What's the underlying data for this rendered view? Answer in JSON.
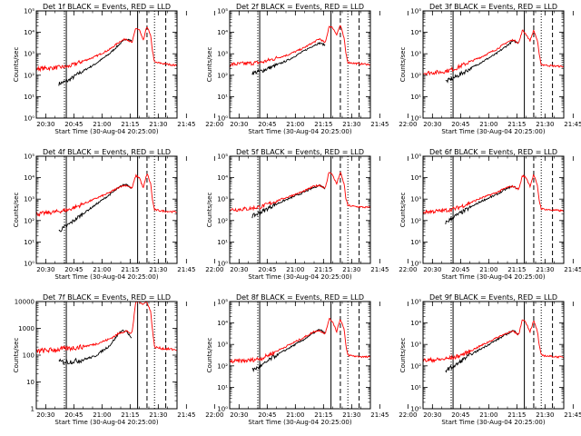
{
  "page_title": "",
  "chart_data": [
    {
      "type": "line",
      "title": "Det 1f BLACK = Events, RED = LLD",
      "xlabel": "Start Time (30-Aug-04 20:25:00)",
      "ylabel": "Counts/sec",
      "yscale": "log",
      "ylim": [
        1,
        100000
      ],
      "ytick_labels": [
        "10⁰",
        "10¹",
        "10²",
        "10³",
        "10⁴",
        "10⁵"
      ],
      "xlim_minutes": [
        25,
        100
      ],
      "xtick_labels": [
        "20:30",
        "20:45",
        "21:00",
        "21:15",
        "21:30",
        "21:45",
        "22:00"
      ],
      "grid": false,
      "series": [
        {
          "name": "Events",
          "color": "#000000",
          "t_minutes": [
            37,
            42,
            48,
            56,
            64,
            70,
            73,
            76
          ],
          "log10_rate": [
            1.6,
            1.75,
            2.1,
            2.5,
            3.0,
            3.5,
            3.7,
            3.6
          ]
        },
        {
          "name": "LLD",
          "color": "#ff0000",
          "t_minutes": [
            25,
            35,
            42,
            48,
            56,
            64,
            70,
            73,
            76,
            78,
            80,
            82,
            84,
            86,
            87,
            88,
            92,
            100
          ],
          "log10_rate": [
            2.3,
            2.35,
            2.4,
            2.6,
            2.85,
            3.2,
            3.6,
            3.7,
            3.5,
            4.2,
            4.1,
            3.6,
            4.3,
            3.8,
            3.1,
            2.6,
            2.55,
            2.45
          ]
        }
      ],
      "markers": {
        "solid": [
          41,
          79
        ],
        "dotted": [
          40,
          88
        ],
        "dashed": [
          84,
          94
        ]
      }
    },
    {
      "type": "line",
      "title": "Det 2f BLACK = Events, RED = LLD",
      "xlabel": "Start Time (30-Aug-04 20:25:00)",
      "ylabel": "Counts/sec",
      "yscale": "log",
      "ylim": [
        1,
        100000
      ],
      "ytick_labels": [
        "10⁰",
        "10¹",
        "10²",
        "10³",
        "10⁴",
        "10⁵"
      ],
      "xlim_minutes": [
        25,
        100
      ],
      "xtick_labels": [
        "20:30",
        "20:45",
        "21:00",
        "21:15",
        "21:30",
        "21:45",
        "22:00"
      ],
      "grid": false,
      "series": [
        {
          "name": "Events",
          "color": "#000000",
          "t_minutes": [
            37,
            42,
            48,
            56,
            64,
            70,
            73,
            76
          ],
          "log10_rate": [
            2.1,
            2.2,
            2.4,
            2.7,
            3.1,
            3.4,
            3.5,
            3.4
          ]
        },
        {
          "name": "LLD",
          "color": "#ff0000",
          "t_minutes": [
            25,
            35,
            42,
            48,
            56,
            64,
            70,
            73,
            76,
            78,
            80,
            82,
            84,
            86,
            87,
            88,
            92,
            100
          ],
          "log10_rate": [
            2.5,
            2.55,
            2.6,
            2.75,
            2.95,
            3.25,
            3.55,
            3.7,
            3.5,
            4.3,
            4.2,
            3.9,
            4.35,
            3.7,
            3.0,
            2.6,
            2.55,
            2.5
          ]
        }
      ],
      "markers": {
        "solid": [
          41,
          79
        ],
        "dotted": [
          40,
          88
        ],
        "dashed": [
          84,
          94
        ]
      }
    },
    {
      "type": "line",
      "title": "Det 3f BLACK = Events, RED = LLD",
      "xlabel": "Start Time (30-Aug-04 20:25:00)",
      "ylabel": "Counts/sec",
      "yscale": "log",
      "ylim": [
        1,
        100000
      ],
      "ytick_labels": [
        "10⁰",
        "10¹",
        "10²",
        "10³",
        "10⁴",
        "10⁵"
      ],
      "xlim_minutes": [
        25,
        100
      ],
      "xtick_labels": [
        "20:30",
        "20:45",
        "21:00",
        "21:15",
        "21:30",
        "21:45",
        "22:00"
      ],
      "grid": false,
      "series": [
        {
          "name": "Events",
          "color": "#000000",
          "t_minutes": [
            37,
            42,
            48,
            56,
            64,
            70,
            73,
            76
          ],
          "log10_rate": [
            1.7,
            1.9,
            2.2,
            2.6,
            3.0,
            3.4,
            3.6,
            3.5
          ]
        },
        {
          "name": "LLD",
          "color": "#ff0000",
          "t_minutes": [
            25,
            35,
            42,
            48,
            56,
            64,
            70,
            73,
            76,
            78,
            80,
            82,
            84,
            86,
            87,
            88,
            92,
            100
          ],
          "log10_rate": [
            2.1,
            2.15,
            2.3,
            2.55,
            2.85,
            3.2,
            3.55,
            3.65,
            3.5,
            4.1,
            3.9,
            3.6,
            4.1,
            3.6,
            2.9,
            2.5,
            2.45,
            2.4
          ]
        }
      ],
      "markers": {
        "solid": [
          41,
          79
        ],
        "dotted": [
          40,
          88
        ],
        "dashed": [
          84,
          94
        ]
      }
    },
    {
      "type": "line",
      "title": "Det 4f BLACK = Events, RED = LLD",
      "xlabel": "Start Time (30-Aug-04 20:25:00)",
      "ylabel": "Counts/sec",
      "yscale": "log",
      "ylim": [
        1,
        100000
      ],
      "ytick_labels": [
        "10⁰",
        "10¹",
        "10²",
        "10³",
        "10⁴",
        "10⁵"
      ],
      "xlim_minutes": [
        25,
        100
      ],
      "xtick_labels": [
        "20:30",
        "20:45",
        "21:00",
        "21:15",
        "21:30",
        "21:45",
        "22:00"
      ],
      "grid": false,
      "series": [
        {
          "name": "Events",
          "color": "#000000",
          "t_minutes": [
            37,
            42,
            48,
            56,
            64,
            70,
            73,
            76
          ],
          "log10_rate": [
            1.5,
            1.8,
            2.2,
            2.7,
            3.2,
            3.6,
            3.7,
            3.5
          ]
        },
        {
          "name": "LLD",
          "color": "#ff0000",
          "t_minutes": [
            25,
            35,
            42,
            48,
            56,
            64,
            70,
            73,
            76,
            78,
            80,
            82,
            84,
            86,
            87,
            88,
            92,
            100
          ],
          "log10_rate": [
            2.3,
            2.4,
            2.5,
            2.7,
            3.0,
            3.3,
            3.6,
            3.65,
            3.5,
            4.1,
            4.0,
            3.5,
            4.2,
            3.7,
            2.9,
            2.5,
            2.45,
            2.4
          ]
        }
      ],
      "markers": {
        "solid": [
          41,
          79
        ],
        "dotted": [
          40,
          88
        ],
        "dashed": [
          84,
          94
        ]
      }
    },
    {
      "type": "line",
      "title": "Det 5f BLACK = Events, RED = LLD",
      "xlabel": "Start Time (30-Aug-04 20:25:00)",
      "ylabel": "Counts/sec",
      "yscale": "log",
      "ylim": [
        1,
        100000
      ],
      "ytick_labels": [
        "10⁰",
        "10¹",
        "10²",
        "10³",
        "10⁴",
        "10⁵"
      ],
      "xlim_minutes": [
        25,
        100
      ],
      "xtick_labels": [
        "20:30",
        "20:45",
        "21:00",
        "21:15",
        "21:30",
        "21:45",
        "22:00"
      ],
      "grid": false,
      "series": [
        {
          "name": "Events",
          "color": "#000000",
          "t_minutes": [
            37,
            42,
            48,
            56,
            64,
            70,
            73,
            76
          ],
          "log10_rate": [
            2.2,
            2.4,
            2.7,
            3.0,
            3.3,
            3.55,
            3.65,
            3.5
          ]
        },
        {
          "name": "LLD",
          "color": "#ff0000",
          "t_minutes": [
            25,
            35,
            42,
            48,
            56,
            64,
            70,
            73,
            76,
            78,
            80,
            82,
            84,
            86,
            87,
            88,
            92,
            100
          ],
          "log10_rate": [
            2.5,
            2.55,
            2.65,
            2.85,
            3.1,
            3.35,
            3.6,
            3.65,
            3.5,
            4.3,
            4.1,
            3.7,
            4.25,
            3.7,
            3.0,
            2.7,
            2.65,
            2.6
          ]
        }
      ],
      "markers": {
        "solid": [
          41,
          79
        ],
        "dotted": [
          40,
          88
        ],
        "dashed": [
          84,
          94
        ]
      }
    },
    {
      "type": "line",
      "title": "Det 6f BLACK = Events, RED = LLD",
      "xlabel": "Start Time (30-Aug-04 20:25:00)",
      "ylabel": "Counts/sec",
      "yscale": "log",
      "ylim": [
        1,
        100000
      ],
      "ytick_labels": [
        "10⁰",
        "10¹",
        "10²",
        "10³",
        "10⁴",
        "10⁵"
      ],
      "xlim_minutes": [
        25,
        100
      ],
      "xtick_labels": [
        "20:30",
        "20:45",
        "21:00",
        "21:15",
        "21:30",
        "21:45",
        "22:00"
      ],
      "grid": false,
      "series": [
        {
          "name": "Events",
          "color": "#000000",
          "t_minutes": [
            37,
            42,
            48,
            56,
            64,
            70,
            73,
            76
          ],
          "log10_rate": [
            1.9,
            2.2,
            2.5,
            2.9,
            3.2,
            3.5,
            3.6,
            3.45
          ]
        },
        {
          "name": "LLD",
          "color": "#ff0000",
          "t_minutes": [
            25,
            35,
            42,
            48,
            56,
            64,
            70,
            73,
            76,
            78,
            80,
            82,
            84,
            86,
            87,
            88,
            92,
            100
          ],
          "log10_rate": [
            2.4,
            2.45,
            2.55,
            2.75,
            3.05,
            3.3,
            3.55,
            3.6,
            3.45,
            4.1,
            4.0,
            3.6,
            4.15,
            3.6,
            2.9,
            2.55,
            2.5,
            2.45
          ]
        }
      ],
      "markers": {
        "solid": [
          41,
          79
        ],
        "dotted": [
          40,
          88
        ],
        "dashed": [
          84,
          94
        ]
      }
    },
    {
      "type": "line",
      "title": "Det 7f BLACK = Events, RED = LLD",
      "xlabel": "Start Time (30-Aug-04 20:25:00)",
      "ylabel": "Counts/sec",
      "yscale": "log",
      "ylim": [
        1,
        10000
      ],
      "ytick_labels": [
        "1",
        "10",
        "100",
        "1000",
        "10000"
      ],
      "xlim_minutes": [
        25,
        100
      ],
      "xtick_labels": [
        "20:30",
        "20:45",
        "21:00",
        "21:15",
        "21:30",
        "21:45",
        "22:00"
      ],
      "grid": false,
      "series": [
        {
          "name": "Events",
          "color": "#000000",
          "t_minutes": [
            37,
            42,
            48,
            56,
            64,
            70,
            73,
            76
          ],
          "log10_rate": [
            1.75,
            1.75,
            1.8,
            1.95,
            2.35,
            2.9,
            2.9,
            2.6
          ]
        },
        {
          "name": "LLD",
          "color": "#ff0000",
          "t_minutes": [
            25,
            35,
            42,
            48,
            56,
            64,
            70,
            73,
            76,
            78,
            80,
            82,
            84,
            86,
            87,
            88,
            92,
            100
          ],
          "log10_rate": [
            2.15,
            2.2,
            2.25,
            2.3,
            2.4,
            2.6,
            2.85,
            2.9,
            2.8,
            4.0,
            4.0,
            3.9,
            4.0,
            3.6,
            2.9,
            2.3,
            2.25,
            2.2
          ]
        }
      ],
      "markers": {
        "solid": [
          41,
          79
        ],
        "dotted": [
          40,
          88
        ],
        "dashed": [
          84,
          94
        ]
      }
    },
    {
      "type": "line",
      "title": "Det 8f BLACK = Events, RED = LLD",
      "xlabel": "Start Time (30-Aug-04 20:25:00)",
      "ylabel": "Counts/sec",
      "yscale": "log",
      "ylim": [
        1,
        100000
      ],
      "ytick_labels": [
        "10⁰",
        "10¹",
        "10²",
        "10³",
        "10⁴",
        "10⁵"
      ],
      "xlim_minutes": [
        25,
        100
      ],
      "xtick_labels": [
        "20:30",
        "20:45",
        "21:00",
        "21:15",
        "21:30",
        "21:45",
        "22:00"
      ],
      "grid": false,
      "series": [
        {
          "name": "Events",
          "color": "#000000",
          "t_minutes": [
            37,
            42,
            48,
            56,
            64,
            70,
            73,
            76
          ],
          "log10_rate": [
            1.8,
            2.0,
            2.4,
            2.8,
            3.2,
            3.55,
            3.7,
            3.5
          ]
        },
        {
          "name": "LLD",
          "color": "#ff0000",
          "t_minutes": [
            25,
            35,
            42,
            48,
            56,
            64,
            70,
            73,
            76,
            78,
            80,
            82,
            84,
            86,
            87,
            88,
            92,
            100
          ],
          "log10_rate": [
            2.2,
            2.25,
            2.35,
            2.6,
            2.95,
            3.3,
            3.6,
            3.65,
            3.5,
            4.2,
            4.05,
            3.6,
            4.2,
            3.7,
            2.9,
            2.5,
            2.45,
            2.4
          ]
        }
      ],
      "markers": {
        "solid": [
          41,
          79
        ],
        "dotted": [
          40,
          88
        ],
        "dashed": [
          84,
          94
        ]
      }
    },
    {
      "type": "line",
      "title": "Det 9f BLACK = Events, RED = LLD",
      "xlabel": "Start Time (30-Aug-04 20:25:00)",
      "ylabel": "Counts/sec",
      "yscale": "log",
      "ylim": [
        1,
        100000
      ],
      "ytick_labels": [
        "10⁰",
        "10¹",
        "10²",
        "10³",
        "10⁴",
        "10⁵"
      ],
      "xlim_minutes": [
        25,
        100
      ],
      "xtick_labels": [
        "20:30",
        "20:45",
        "21:00",
        "21:15",
        "21:30",
        "21:45",
        "22:00"
      ],
      "grid": false,
      "series": [
        {
          "name": "Events",
          "color": "#000000",
          "t_minutes": [
            37,
            42,
            48,
            56,
            64,
            70,
            73,
            76
          ],
          "log10_rate": [
            1.8,
            2.0,
            2.4,
            2.8,
            3.2,
            3.5,
            3.65,
            3.5
          ]
        },
        {
          "name": "LLD",
          "color": "#ff0000",
          "t_minutes": [
            25,
            35,
            42,
            48,
            56,
            64,
            70,
            73,
            76,
            78,
            80,
            82,
            84,
            86,
            87,
            88,
            92,
            100
          ],
          "log10_rate": [
            2.25,
            2.3,
            2.4,
            2.6,
            2.95,
            3.3,
            3.55,
            3.6,
            3.45,
            4.2,
            4.0,
            3.6,
            4.1,
            3.6,
            2.9,
            2.5,
            2.45,
            2.4
          ]
        }
      ],
      "markers": {
        "solid": [
          41,
          79
        ],
        "dotted": [
          40,
          88
        ],
        "dashed": [
          84,
          94
        ]
      }
    }
  ]
}
